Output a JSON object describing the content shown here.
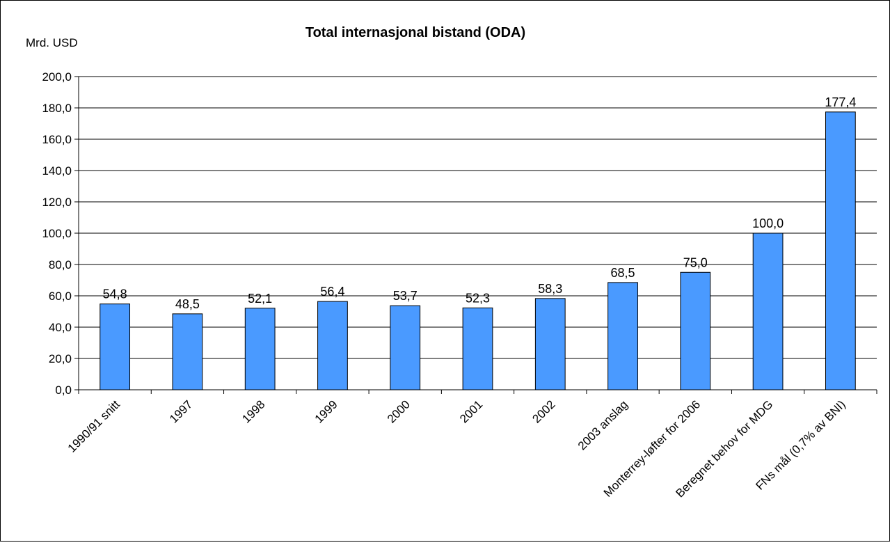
{
  "chart_data": {
    "type": "bar",
    "title": "Total internasjonal bistand (ODA)",
    "ylabel": "Mrd. USD",
    "xlabel": "",
    "categories": [
      "1990/91 snitt",
      "1997",
      "1998",
      "1999",
      "2000",
      "2001",
      "2002",
      "2003 anslag",
      "Monterrey-løfter for 2006",
      "Beregnet behov for MDG",
      "FNs mål (0,7% av BNI)"
    ],
    "values": [
      54.8,
      48.5,
      52.1,
      56.4,
      53.7,
      52.3,
      58.3,
      68.5,
      75.0,
      100.0,
      177.4
    ],
    "data_labels": [
      "54,8",
      "48,5",
      "52,1",
      "56,4",
      "53,7",
      "52,3",
      "58,3",
      "68,5",
      "75,0",
      "100,0",
      "177,4"
    ],
    "ylim": [
      0,
      200
    ],
    "yticks": [
      0,
      20,
      40,
      60,
      80,
      100,
      120,
      140,
      160,
      180,
      200
    ],
    "ytick_labels": [
      "0,0",
      "20,0",
      "40,0",
      "60,0",
      "80,0",
      "100,0",
      "120,0",
      "140,0",
      "160,0",
      "180,0",
      "200,0"
    ],
    "grid": true,
    "legend": "none",
    "bar_color": "#4a9aff",
    "bar_edge_color": "#000000"
  }
}
